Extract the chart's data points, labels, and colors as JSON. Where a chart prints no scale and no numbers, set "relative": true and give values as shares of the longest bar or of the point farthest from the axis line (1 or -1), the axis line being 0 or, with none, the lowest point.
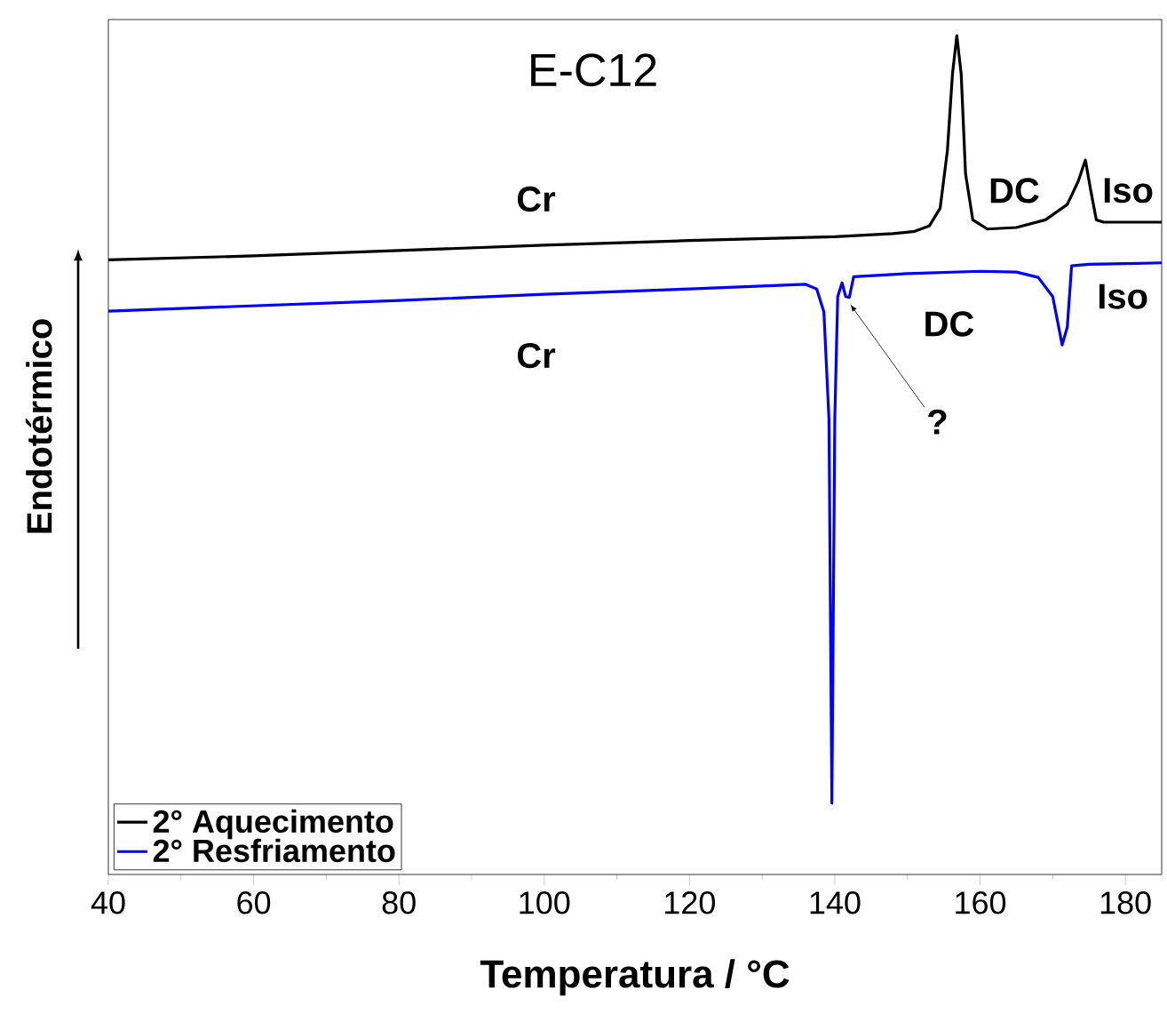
{
  "chart_data": {
    "type": "line",
    "relative": true,
    "title": "E-C12",
    "xlabel": "Temperatura / °C",
    "ylabel": "Endotérmico",
    "xlim": [
      40,
      185
    ],
    "xticks": [
      40,
      60,
      80,
      100,
      120,
      140,
      160,
      180
    ],
    "legend": "bottom left",
    "grid": false,
    "marker": "none",
    "line_style": "solid",
    "series": [
      {
        "name": "2° Aquecimento",
        "color": "#000000",
        "x": [
          40,
          60,
          80,
          100,
          120,
          140,
          148,
          151,
          153,
          154.5,
          155.5,
          156.2,
          156.8,
          157.4,
          158,
          159,
          161,
          165,
          169,
          172,
          173.5,
          174.5,
          175.2,
          176,
          177,
          180,
          185
        ],
        "values": [
          0.708,
          0.713,
          0.72,
          0.727,
          0.733,
          0.738,
          0.742,
          0.745,
          0.752,
          0.775,
          0.85,
          0.95,
          1.0,
          0.95,
          0.82,
          0.76,
          0.748,
          0.75,
          0.76,
          0.78,
          0.81,
          0.838,
          0.8,
          0.76,
          0.757,
          0.757,
          0.757
        ]
      },
      {
        "name": "2° Resfriamento",
        "color": "#0000ff",
        "x": [
          40,
          60,
          80,
          100,
          120,
          136,
          137.5,
          138.5,
          139.2,
          139.6,
          140.0,
          140.4,
          141.0,
          141.5,
          142.0,
          142.6,
          150,
          160,
          165,
          168,
          170,
          171.3,
          172,
          172.6,
          175,
          180,
          185
        ],
        "values": [
          0.641,
          0.648,
          0.655,
          0.663,
          0.67,
          0.676,
          0.67,
          0.64,
          0.5,
          0.0,
          0.5,
          0.66,
          0.678,
          0.66,
          0.659,
          0.686,
          0.69,
          0.693,
          0.692,
          0.685,
          0.66,
          0.597,
          0.62,
          0.7,
          0.702,
          0.703,
          0.704
        ]
      }
    ],
    "annotations": [
      "Cr",
      "DC",
      "Iso",
      "Cr",
      "DC",
      "Iso",
      {
        "text": "?",
        "x": 141.9,
        "y": 0.659
      }
    ]
  }
}
